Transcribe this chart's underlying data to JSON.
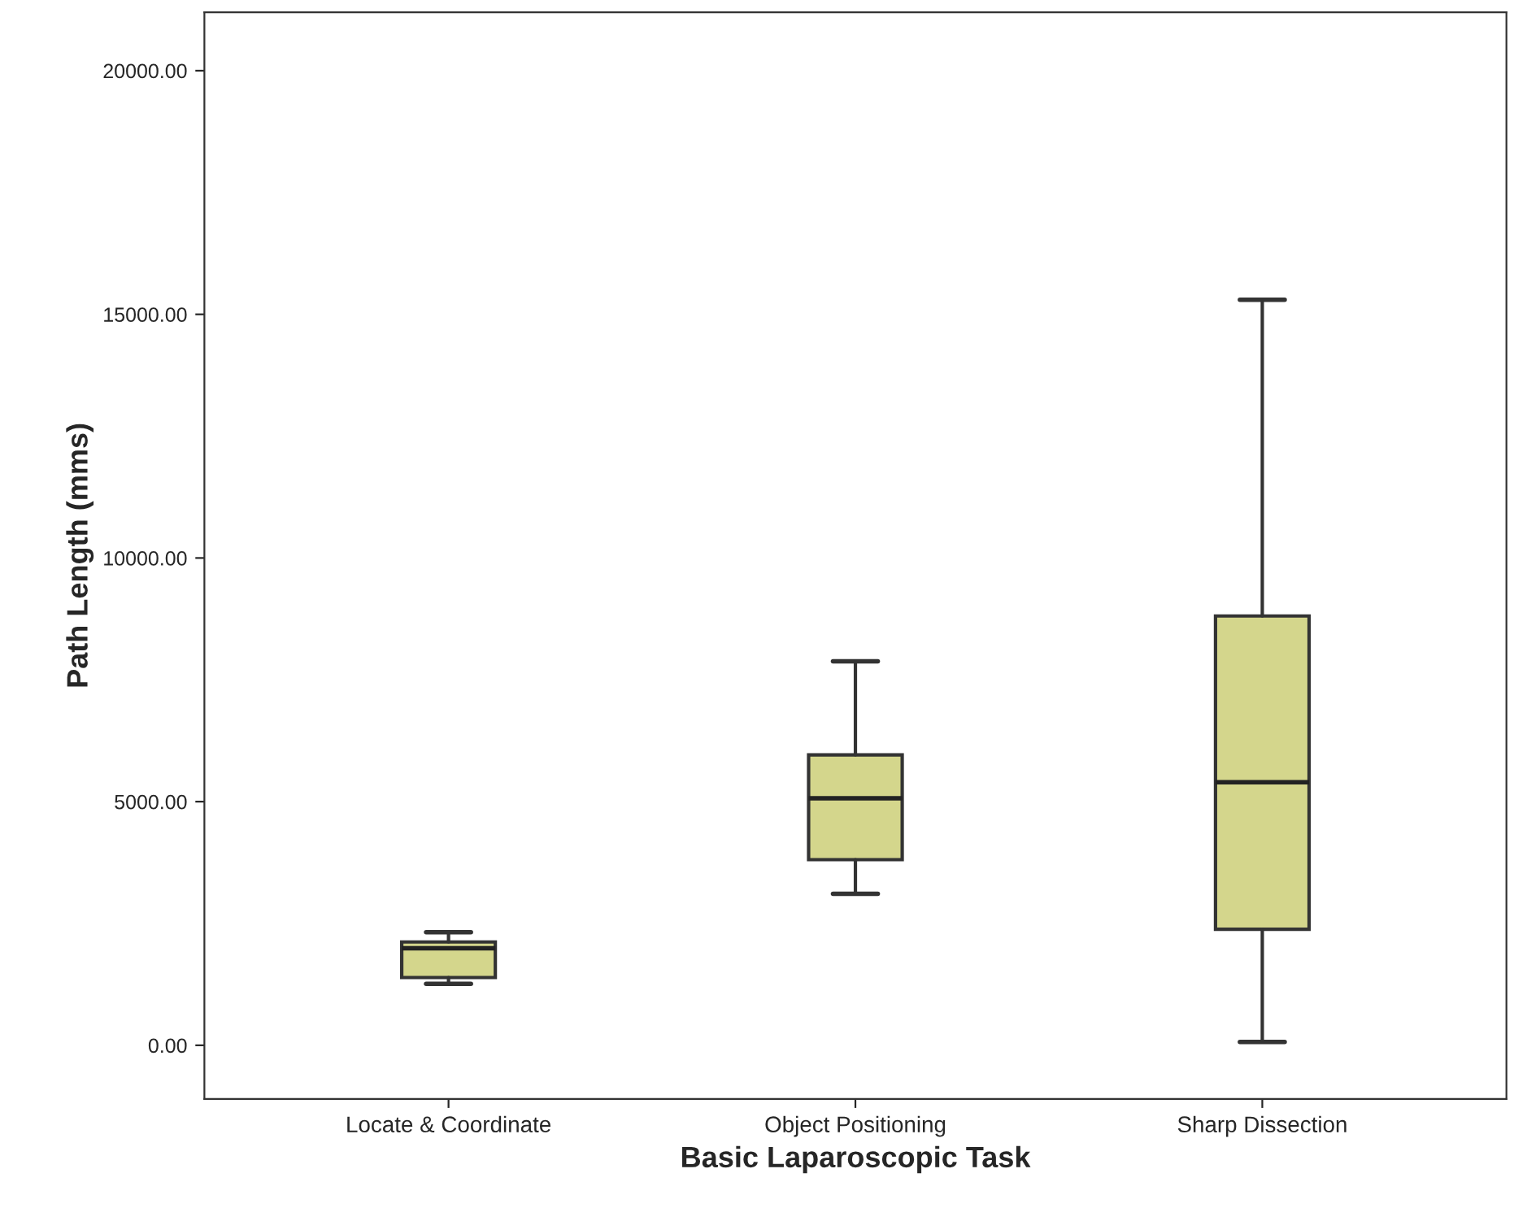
{
  "chart_data": {
    "type": "box",
    "xlabel": "Basic Laparoscopic Task",
    "ylabel": "Path Length (mms)",
    "categories": [
      "Locate & Coordinate",
      "Object Positioning",
      "Sharp Dissection"
    ],
    "boxes": [
      {
        "low": 1260,
        "q1": 1390,
        "median": 1990,
        "q3": 2120,
        "high": 2320
      },
      {
        "low": 3110,
        "q1": 3810,
        "median": 5070,
        "q3": 5960,
        "high": 7880
      },
      {
        "low": 70,
        "q1": 2380,
        "median": 5400,
        "q3": 8810,
        "high": 15300
      }
    ],
    "color": "#d4d68c",
    "ylim": [
      -1100,
      21200
    ],
    "yticks": [
      {
        "value": 0,
        "label": "0.00"
      },
      {
        "value": 5000,
        "label": "5000.00"
      },
      {
        "value": 10000,
        "label": "10000.00"
      },
      {
        "value": 15000,
        "label": "15000.00"
      },
      {
        "value": 20000,
        "label": "20000.00"
      }
    ],
    "grid": false
  }
}
